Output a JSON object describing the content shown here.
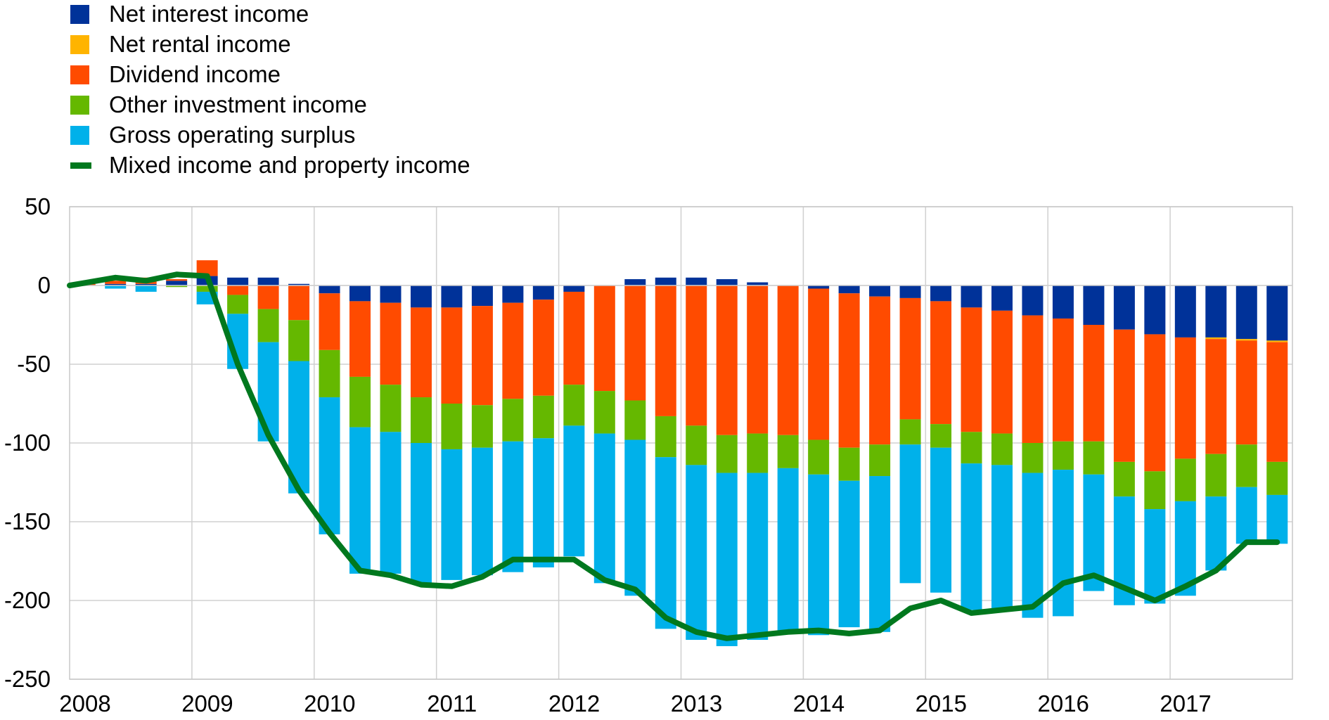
{
  "chart_data": {
    "type": "bar",
    "stacked": true,
    "title": "",
    "xlabel": "",
    "ylabel": "",
    "ylim": [
      -250,
      50
    ],
    "yticks": [
      50,
      0,
      -50,
      -100,
      -150,
      -200,
      -250
    ],
    "ytick_labels": [
      "50",
      "0",
      "-50",
      "-100",
      "-150",
      "-200",
      "-250"
    ],
    "xlim": [
      2008,
      2018
    ],
    "xticks": [
      2008,
      2009,
      2010,
      2011,
      2012,
      2013,
      2014,
      2015,
      2016,
      2017
    ],
    "xtick_labels": [
      "2008",
      "2009",
      "2010",
      "2011",
      "2012",
      "2013",
      "2014",
      "2015",
      "2016",
      "2017"
    ],
    "grid": true,
    "legend_position": "top-left",
    "categories": [
      "2008Q1",
      "2008Q2",
      "2008Q3",
      "2008Q4",
      "2009Q1",
      "2009Q2",
      "2009Q3",
      "2009Q4",
      "2010Q1",
      "2010Q2",
      "2010Q3",
      "2010Q4",
      "2011Q1",
      "2011Q2",
      "2011Q3",
      "2011Q4",
      "2012Q1",
      "2012Q2",
      "2012Q3",
      "2012Q4",
      "2013Q1",
      "2013Q2",
      "2013Q3",
      "2013Q4",
      "2014Q1",
      "2014Q2",
      "2014Q3",
      "2014Q4",
      "2015Q1",
      "2015Q2",
      "2015Q3",
      "2015Q4",
      "2016Q1",
      "2016Q2",
      "2016Q3",
      "2016Q4",
      "2017Q1",
      "2017Q2",
      "2017Q3",
      "2017Q4"
    ],
    "x": [
      2008.0,
      2008.25,
      2008.5,
      2008.75,
      2009.0,
      2009.25,
      2009.5,
      2009.75,
      2010.0,
      2010.25,
      2010.5,
      2010.75,
      2011.0,
      2011.25,
      2011.5,
      2011.75,
      2012.0,
      2012.25,
      2012.5,
      2012.75,
      2013.0,
      2013.25,
      2013.5,
      2013.75,
      2014.0,
      2014.25,
      2014.5,
      2014.75,
      2015.0,
      2015.25,
      2015.5,
      2015.75,
      2016.0,
      2016.25,
      2016.5,
      2016.75,
      2017.0,
      2017.25,
      2017.5,
      2017.75
    ],
    "series": [
      {
        "name": "Net interest income",
        "kind": "bar",
        "color": "#003299",
        "values": [
          0,
          1,
          1,
          3,
          6,
          5,
          5,
          1,
          -5,
          -10,
          -11,
          -14,
          -14,
          -13,
          -11,
          -9,
          -4,
          0,
          4,
          5,
          5,
          4,
          2,
          0,
          -2,
          -5,
          -7,
          -8,
          -10,
          -14,
          -16,
          -19,
          -21,
          -25,
          -28,
          -31,
          -33,
          -33,
          -34,
          -35
        ]
      },
      {
        "name": "Net rental income",
        "kind": "bar",
        "color": "#ffb400",
        "values": [
          0,
          0,
          0,
          0,
          0,
          0,
          0,
          0,
          0,
          0,
          0,
          0,
          0,
          0,
          0,
          0,
          0,
          0,
          0,
          0,
          0,
          0,
          0,
          0,
          0,
          0,
          0,
          0,
          0,
          0,
          0,
          0,
          0,
          0,
          0,
          0,
          0,
          -1,
          -1,
          -1
        ]
      },
      {
        "name": "Dividend income",
        "kind": "bar",
        "color": "#ff4b00",
        "values": [
          1,
          2,
          4,
          1,
          10,
          -6,
          -15,
          -22,
          -36,
          -48,
          -52,
          -57,
          -61,
          -63,
          -61,
          -61,
          -59,
          -67,
          -73,
          -83,
          -89,
          -95,
          -94,
          -95,
          -96,
          -98,
          -94,
          -77,
          -78,
          -79,
          -78,
          -81,
          -78,
          -74,
          -84,
          -87,
          -77,
          -73,
          -66,
          -76
        ]
      },
      {
        "name": "Other investment income",
        "kind": "bar",
        "color": "#65b800",
        "values": [
          0,
          0,
          0,
          -1,
          -4,
          -12,
          -21,
          -26,
          -30,
          -32,
          -30,
          -29,
          -29,
          -27,
          -27,
          -27,
          -26,
          -27,
          -25,
          -26,
          -25,
          -24,
          -25,
          -21,
          -22,
          -21,
          -20,
          -16,
          -15,
          -20,
          -20,
          -19,
          -18,
          -21,
          -22,
          -24,
          -27,
          -27,
          -27,
          -21
        ]
      },
      {
        "name": "Gross operating surplus",
        "kind": "bar",
        "color": "#00b1ea",
        "values": [
          0,
          -2,
          -4,
          0,
          -8,
          -35,
          -63,
          -84,
          -87,
          -93,
          -90,
          -89,
          -83,
          -81,
          -83,
          -82,
          -83,
          -95,
          -99,
          -109,
          -111,
          -110,
          -106,
          -105,
          -102,
          -93,
          -99,
          -88,
          -92,
          -93,
          -92,
          -92,
          -93,
          -74,
          -69,
          -60,
          -60,
          -47,
          -36,
          -31
        ]
      },
      {
        "name": "Mixed income and property income",
        "kind": "line",
        "color": "#00781e",
        "values": [
          0,
          5,
          3,
          7,
          6,
          -50,
          -95,
          -130,
          -157,
          -181,
          -184,
          -190,
          -191,
          -185,
          -174,
          -174,
          -174,
          -187,
          -193,
          -211,
          -220,
          -224,
          -222,
          -220,
          -219,
          -221,
          -219,
          -205,
          -200,
          -208,
          -206,
          -204,
          -189,
          -184,
          -192,
          -200,
          -191,
          -181,
          -163,
          -163
        ]
      }
    ]
  }
}
